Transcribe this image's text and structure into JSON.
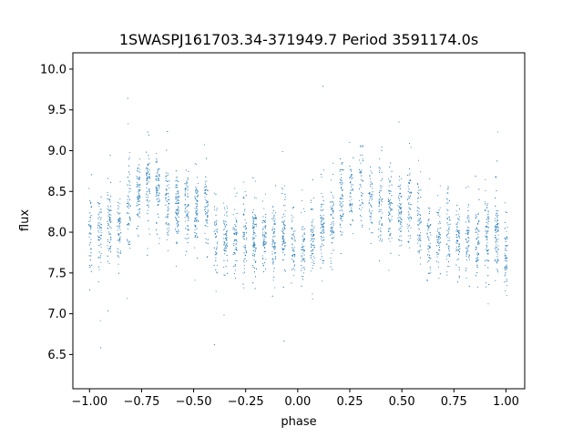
{
  "chart_data": {
    "type": "scatter",
    "title": "1SWASPJ161703.34-371949.7 Period 3591174.0s",
    "xlabel": "phase",
    "ylabel": "flux",
    "xlim": [
      -1.08,
      1.09
    ],
    "ylim": [
      6.08,
      10.2
    ],
    "xticks": [
      -1.0,
      -0.75,
      -0.5,
      -0.25,
      0.0,
      0.25,
      0.5,
      0.75,
      1.0
    ],
    "xtick_labels": [
      "−1.00",
      "−0.75",
      "−0.50",
      "−0.25",
      "0.00",
      "0.25",
      "0.50",
      "0.75",
      "1.00"
    ],
    "yticks": [
      6.5,
      7.0,
      7.5,
      8.0,
      8.5,
      9.0,
      9.5,
      10.0
    ],
    "ytick_labels": [
      "6.5",
      "7.0",
      "7.5",
      "8.0",
      "8.5",
      "9.0",
      "9.5",
      "10.0"
    ],
    "grid": false,
    "point_color": "#1f77b4",
    "series": [
      {
        "points_summary": "phase-folded light curve, repeated over phase -1 to 1",
        "x": [
          -1.0,
          -0.95,
          -0.9,
          -0.85,
          -0.8,
          -0.75,
          -0.7,
          -0.65,
          -0.6,
          -0.55,
          -0.5,
          -0.45,
          -0.4,
          -0.35,
          -0.3,
          -0.25,
          -0.2,
          -0.15,
          -0.1,
          -0.05,
          0.0,
          0.05,
          0.1,
          0.15,
          0.2,
          0.25,
          0.3,
          0.35,
          0.4,
          0.45,
          0.5,
          0.55,
          0.6,
          0.65,
          0.7,
          0.75,
          0.8,
          0.85,
          0.9,
          0.95,
          1.0
        ],
        "y": [
          7.9,
          8.0,
          8.1,
          8.05,
          8.35,
          8.5,
          8.6,
          8.4,
          8.3,
          8.35,
          8.25,
          8.4,
          8.0,
          7.9,
          7.95,
          8.0,
          7.95,
          7.9,
          7.95,
          8.0,
          7.7,
          7.85,
          8.05,
          8.1,
          8.35,
          8.5,
          8.6,
          8.4,
          8.3,
          8.35,
          8.25,
          8.4,
          8.0,
          7.9,
          7.95,
          8.0,
          7.95,
          7.9,
          7.95,
          8.0,
          7.7
        ]
      }
    ]
  }
}
